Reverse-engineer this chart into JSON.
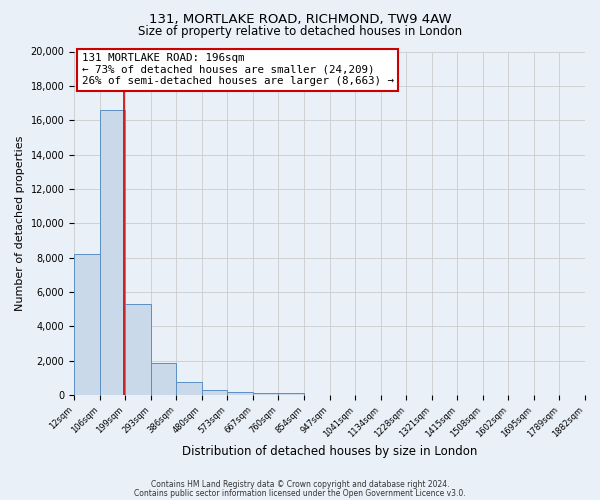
{
  "title_line1": "131, MORTLAKE ROAD, RICHMOND, TW9 4AW",
  "title_line2": "Size of property relative to detached houses in London",
  "xlabel": "Distribution of detached houses by size in London",
  "ylabel": "Number of detached properties",
  "bin_labels": [
    "12sqm",
    "106sqm",
    "199sqm",
    "293sqm",
    "386sqm",
    "480sqm",
    "573sqm",
    "667sqm",
    "760sqm",
    "854sqm",
    "947sqm",
    "1041sqm",
    "1134sqm",
    "1228sqm",
    "1321sqm",
    "1415sqm",
    "1508sqm",
    "1602sqm",
    "1695sqm",
    "1789sqm",
    "1882sqm"
  ],
  "bar_heights": [
    8200,
    16600,
    5300,
    1850,
    750,
    280,
    180,
    130,
    100,
    0,
    0,
    0,
    0,
    0,
    0,
    0,
    0,
    0,
    0,
    0
  ],
  "bar_color": "#c9d9ea",
  "bar_edge_color": "#5a8fc4",
  "property_line_color": "#cc0000",
  "annotation_title": "131 MORTLAKE ROAD: 196sqm",
  "annotation_line1": "← 73% of detached houses are smaller (24,209)",
  "annotation_line2": "26% of semi-detached houses are larger (8,663) →",
  "annotation_box_color": "#ffffff",
  "annotation_box_edge": "#cc0000",
  "ylim": [
    0,
    20000
  ],
  "yticks": [
    0,
    2000,
    4000,
    6000,
    8000,
    10000,
    12000,
    14000,
    16000,
    18000,
    20000
  ],
  "grid_color": "#cccccc",
  "background_color": "#eaf0f8",
  "footer_line1": "Contains HM Land Registry data © Crown copyright and database right 2024.",
  "footer_line2": "Contains public sector information licensed under the Open Government Licence v3.0.",
  "bin_edges_val": [
    12,
    106,
    199,
    293,
    386,
    480,
    573,
    667,
    760,
    854,
    947,
    1041,
    1134,
    1228,
    1321,
    1415,
    1508,
    1602,
    1695,
    1789,
    1882
  ],
  "prop_size": 196
}
